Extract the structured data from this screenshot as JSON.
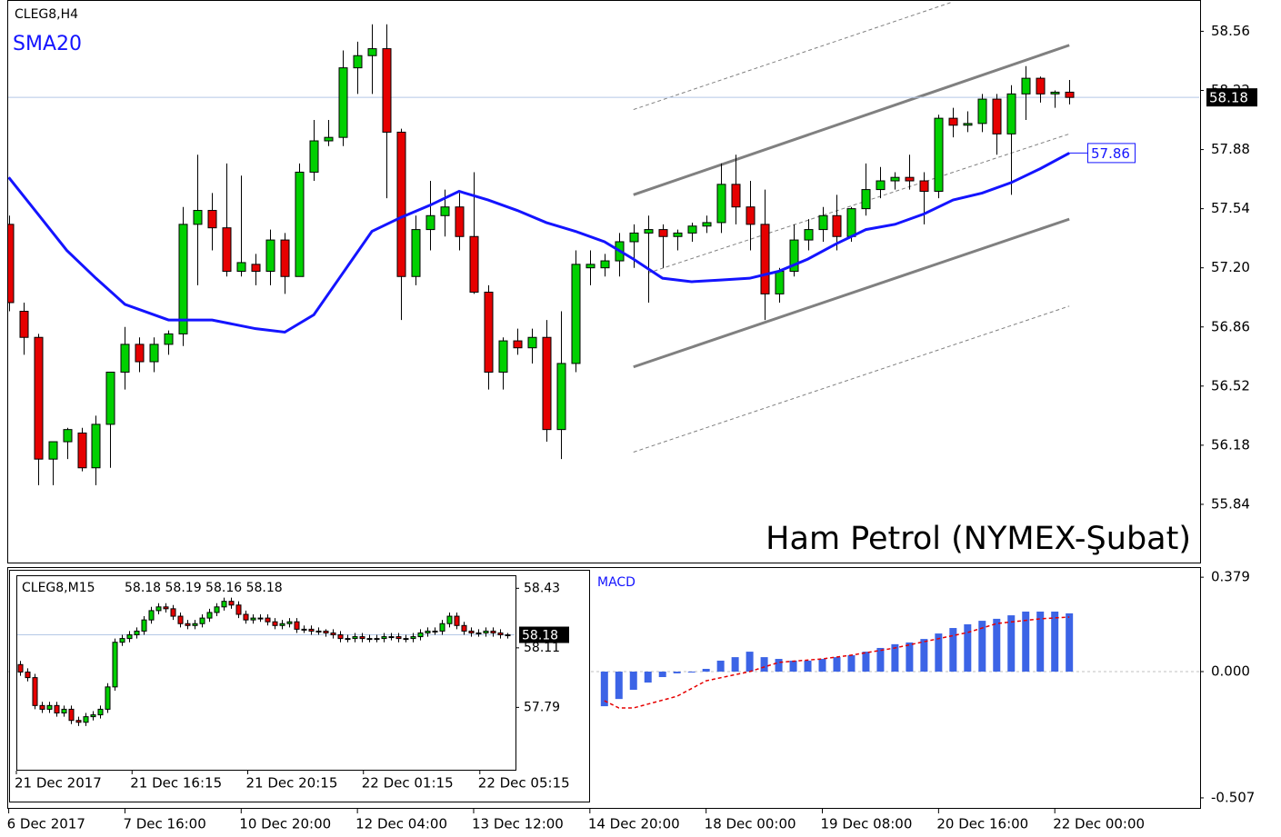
{
  "chart_data": [
    {
      "type": "candlestick",
      "title": "CLEG8,H4",
      "watermark": "Ham Petrol (NYMEX-Şubat)",
      "up_color": "#00d000",
      "down_color": "#e60000",
      "xlim": [
        -0.1,
        82
      ],
      "ylim": [
        55.5,
        58.74
      ],
      "yticks": [
        58.56,
        58.22,
        57.88,
        57.54,
        {
          "value": 57.2,
          "label": "57.20"
        },
        56.86,
        56.52,
        56.18,
        55.84
      ],
      "current_price": 58.18,
      "candles": [
        [
          57.45,
          57.5,
          56.95,
          57.0
        ],
        [
          56.95,
          57.0,
          56.7,
          56.8
        ],
        [
          56.8,
          56.82,
          55.95,
          56.1
        ],
        [
          56.1,
          56.2,
          55.95,
          56.2
        ],
        [
          56.2,
          56.28,
          56.1,
          56.27
        ],
        [
          56.25,
          56.28,
          56.03,
          56.05
        ],
        [
          56.05,
          56.35,
          55.95,
          56.3
        ],
        [
          56.3,
          56.6,
          56.05,
          56.6
        ],
        [
          56.6,
          56.86,
          56.5,
          56.76
        ],
        [
          56.76,
          56.8,
          56.6,
          56.66
        ],
        [
          56.66,
          56.8,
          56.6,
          56.76
        ],
        [
          56.76,
          56.84,
          56.7,
          56.82
        ],
        [
          56.82,
          57.55,
          56.75,
          57.45
        ],
        [
          57.45,
          57.85,
          57.1,
          57.53
        ],
        [
          57.53,
          57.63,
          57.3,
          57.43
        ],
        [
          57.43,
          57.8,
          57.15,
          57.18
        ],
        [
          57.18,
          57.73,
          57.15,
          57.23
        ],
        [
          57.22,
          57.28,
          57.1,
          57.18
        ],
        [
          57.18,
          57.42,
          57.1,
          57.36
        ],
        [
          57.36,
          57.4,
          57.05,
          57.15
        ],
        [
          57.15,
          57.8,
          57.15,
          57.75
        ],
        [
          57.75,
          58.05,
          57.7,
          57.93
        ],
        [
          57.93,
          58.05,
          57.9,
          57.95
        ],
        [
          57.95,
          58.45,
          57.9,
          58.35
        ],
        [
          58.35,
          58.5,
          58.2,
          58.42
        ],
        [
          58.42,
          58.6,
          58.2,
          58.46
        ],
        [
          58.46,
          58.6,
          57.6,
          57.98
        ],
        [
          57.98,
          58.0,
          56.9,
          57.15
        ],
        [
          57.15,
          57.5,
          57.1,
          57.42
        ],
        [
          57.42,
          57.7,
          57.3,
          57.5
        ],
        [
          57.5,
          57.65,
          57.38,
          57.55
        ],
        [
          57.55,
          57.63,
          57.3,
          57.38
        ],
        [
          57.38,
          57.75,
          57.05,
          57.06
        ],
        [
          57.06,
          57.1,
          56.5,
          56.6
        ],
        [
          56.6,
          56.8,
          56.5,
          56.78
        ],
        [
          56.78,
          56.85,
          56.7,
          56.74
        ],
        [
          56.74,
          56.85,
          56.65,
          56.8
        ],
        [
          56.8,
          56.9,
          56.2,
          56.27
        ],
        [
          56.27,
          56.95,
          56.1,
          56.65
        ],
        [
          56.65,
          57.3,
          56.6,
          57.22
        ],
        [
          57.2,
          57.3,
          57.1,
          57.22
        ],
        [
          57.2,
          57.28,
          57.15,
          57.24
        ],
        [
          57.24,
          57.4,
          57.15,
          57.35
        ],
        [
          57.35,
          57.45,
          57.2,
          57.4
        ],
        [
          57.4,
          57.5,
          57.0,
          57.42
        ],
        [
          57.42,
          57.45,
          57.2,
          57.38
        ],
        [
          57.38,
          57.42,
          57.3,
          57.4
        ],
        [
          57.4,
          57.46,
          57.35,
          57.44
        ],
        [
          57.44,
          57.5,
          57.4,
          57.46
        ],
        [
          57.46,
          57.8,
          57.4,
          57.68
        ],
        [
          57.68,
          57.85,
          57.45,
          57.55
        ],
        [
          57.55,
          57.7,
          57.3,
          57.45
        ],
        [
          57.45,
          57.65,
          56.9,
          57.05
        ],
        [
          57.05,
          57.2,
          57.0,
          57.18
        ],
        [
          57.18,
          57.45,
          57.15,
          57.36
        ],
        [
          57.36,
          57.48,
          57.3,
          57.42
        ],
        [
          57.42,
          57.55,
          57.35,
          57.5
        ],
        [
          57.5,
          57.62,
          57.3,
          57.38
        ],
        [
          57.38,
          57.55,
          57.35,
          57.54
        ],
        [
          57.54,
          57.8,
          57.5,
          57.65
        ],
        [
          57.65,
          57.78,
          57.6,
          57.7
        ],
        [
          57.7,
          57.75,
          57.65,
          57.72
        ],
        [
          57.72,
          57.85,
          57.65,
          57.7
        ],
        [
          57.7,
          57.75,
          57.45,
          57.64
        ],
        [
          57.64,
          58.08,
          57.6,
          58.06
        ],
        [
          58.06,
          58.12,
          57.95,
          58.02
        ],
        [
          58.02,
          58.1,
          57.98,
          58.03
        ],
        [
          58.03,
          58.2,
          57.98,
          58.17
        ],
        [
          58.17,
          58.2,
          57.85,
          57.97
        ],
        [
          57.97,
          58.25,
          57.62,
          58.2
        ],
        [
          58.2,
          58.36,
          58.05,
          58.29
        ],
        [
          58.29,
          58.3,
          58.15,
          58.2
        ],
        [
          58.2,
          58.22,
          58.12,
          58.21
        ],
        [
          58.21,
          58.28,
          58.14,
          58.18
        ]
      ],
      "sma": {
        "name": "SMA20",
        "color": "#1414ff",
        "x": [
          0,
          2,
          4,
          6,
          8,
          11,
          14,
          17,
          19,
          21,
          23,
          25,
          27,
          29,
          31,
          33,
          35,
          37,
          39,
          41,
          43,
          45,
          47,
          49,
          51,
          53,
          55,
          57,
          59,
          61,
          63,
          65,
          67,
          69,
          71,
          73
        ],
        "values": [
          57.72,
          57.51,
          57.3,
          57.14,
          56.99,
          56.9,
          56.9,
          56.85,
          56.83,
          56.93,
          57.17,
          57.41,
          57.49,
          57.56,
          57.64,
          57.59,
          57.53,
          57.46,
          57.41,
          57.35,
          57.25,
          57.14,
          57.12,
          57.13,
          57.14,
          57.18,
          57.25,
          57.34,
          57.42,
          57.45,
          57.51,
          57.59,
          57.63,
          57.69,
          57.77,
          57.86
        ]
      },
      "lines": [
        {
          "style": "solid",
          "x": [
            43,
            73
          ],
          "values": [
            57.62,
            58.48
          ]
        },
        {
          "style": "solid",
          "x": [
            43,
            73
          ],
          "values": [
            56.63,
            57.48
          ]
        },
        {
          "style": "dashed",
          "x": [
            43,
            65
          ],
          "values": [
            58.11,
            58.73
          ]
        },
        {
          "style": "dashed",
          "x": [
            44,
            73
          ],
          "values": [
            57.17,
            57.97
          ]
        },
        {
          "style": "dashed",
          "x": [
            43,
            73
          ],
          "values": [
            56.14,
            56.98
          ]
        }
      ],
      "x_labels": [
        {
          "index": 0,
          "label": "6 Dec 2017"
        },
        {
          "index": 8,
          "label": "7 Dec 16:00"
        },
        {
          "index": 16,
          "label": "10 Dec 20:00"
        },
        {
          "index": 24,
          "label": "12 Dec 04:00"
        },
        {
          "index": 32,
          "label": "13 Dec 12:00"
        },
        {
          "index": 40,
          "label": "14 Dec 20:00"
        },
        {
          "index": 48,
          "label": "18 Dec 00:00"
        },
        {
          "index": 56,
          "label": "19 Dec 08:00"
        },
        {
          "index": 64,
          "label": "20 Dec 16:00"
        },
        {
          "index": 72,
          "label": "22 Dec 00:00"
        }
      ]
    },
    {
      "type": "bar",
      "title": "MACD",
      "color": "#3c64e6",
      "ylim": [
        -0.551,
        0.416
      ],
      "yticks": [
        0.379,
        {
          "value": 0,
          "label": "0.000"
        },
        -0.507
      ],
      "x": [
        41,
        42,
        43,
        44,
        45,
        46,
        47,
        48,
        49,
        50,
        51,
        52,
        53,
        54,
        55,
        56,
        57,
        58,
        59,
        60,
        61,
        62,
        63,
        64,
        65,
        66,
        67,
        68,
        69,
        70,
        71,
        72,
        73
      ],
      "values": [
        -0.139,
        -0.11,
        -0.073,
        -0.044,
        -0.022,
        -0.007,
        0.0,
        0.011,
        0.044,
        0.058,
        0.08,
        0.058,
        0.051,
        0.044,
        0.044,
        0.051,
        0.058,
        0.066,
        0.08,
        0.095,
        0.11,
        0.117,
        0.131,
        0.153,
        0.175,
        0.19,
        0.204,
        0.212,
        0.226,
        0.241,
        0.241,
        0.241,
        0.234
      ],
      "signal": {
        "color": "#e60000",
        "x": [
          41,
          42,
          43,
          46,
          48,
          51,
          53,
          56,
          58,
          61,
          63,
          66,
          68,
          71,
          73
        ],
        "values": [
          -0.117,
          -0.146,
          -0.146,
          -0.099,
          -0.037,
          0.0,
          0.037,
          0.051,
          0.066,
          0.095,
          0.12,
          0.157,
          0.193,
          0.212,
          0.219
        ]
      }
    },
    {
      "type": "candlestick",
      "title": "CLEG8,M15",
      "quote": "58.18 58.19 58.16 58.18",
      "up_color": "#00d000",
      "down_color": "#e60000",
      "xlim": [
        -0.5,
        68.1
      ],
      "ylim": [
        57.45,
        58.5
      ],
      "yticks": [
        58.43,
        58.11,
        57.79
      ],
      "current_price": 58.18,
      "candles": [
        [
          58.02,
          58.04,
          57.96,
          57.98
        ],
        [
          57.98,
          58.0,
          57.93,
          57.95
        ],
        [
          57.95,
          57.97,
          57.78,
          57.8
        ],
        [
          57.8,
          57.82,
          57.76,
          57.78
        ],
        [
          57.78,
          57.82,
          57.76,
          57.8
        ],
        [
          57.8,
          57.82,
          57.74,
          57.76
        ],
        [
          57.76,
          57.8,
          57.74,
          57.78
        ],
        [
          57.78,
          57.8,
          57.7,
          57.72
        ],
        [
          57.72,
          57.74,
          57.69,
          57.71
        ],
        [
          57.71,
          57.76,
          57.69,
          57.74
        ],
        [
          57.74,
          57.77,
          57.72,
          57.75
        ],
        [
          57.75,
          57.8,
          57.73,
          57.78
        ],
        [
          57.78,
          57.92,
          57.76,
          57.9
        ],
        [
          57.9,
          58.16,
          57.88,
          58.14
        ],
        [
          58.14,
          58.18,
          58.12,
          58.16
        ],
        [
          58.16,
          58.2,
          58.14,
          58.18
        ],
        [
          58.18,
          58.22,
          58.16,
          58.2
        ],
        [
          58.2,
          58.28,
          58.18,
          58.26
        ],
        [
          58.26,
          58.33,
          58.24,
          58.31
        ],
        [
          58.31,
          58.35,
          58.29,
          58.33
        ],
        [
          58.33,
          58.35,
          58.3,
          58.32
        ],
        [
          58.32,
          58.34,
          58.26,
          58.28
        ],
        [
          58.28,
          58.3,
          58.22,
          58.24
        ],
        [
          58.24,
          58.26,
          58.21,
          58.23
        ],
        [
          58.23,
          58.26,
          58.21,
          58.24
        ],
        [
          58.24,
          58.29,
          58.22,
          58.27
        ],
        [
          58.27,
          58.32,
          58.25,
          58.3
        ],
        [
          58.3,
          58.35,
          58.28,
          58.33
        ],
        [
          58.33,
          58.38,
          58.31,
          58.36
        ],
        [
          58.36,
          58.38,
          58.32,
          58.34
        ],
        [
          58.34,
          58.36,
          58.27,
          58.29
        ],
        [
          58.29,
          58.31,
          58.24,
          58.26
        ],
        [
          58.26,
          58.29,
          58.24,
          58.27
        ],
        [
          58.27,
          58.29,
          58.25,
          58.27
        ],
        [
          58.27,
          58.29,
          58.23,
          58.25
        ],
        [
          58.25,
          58.27,
          58.21,
          58.23
        ],
        [
          58.23,
          58.26,
          58.21,
          58.24
        ],
        [
          58.24,
          58.27,
          58.22,
          58.25
        ],
        [
          58.25,
          58.27,
          58.19,
          58.21
        ],
        [
          58.21,
          58.23,
          58.19,
          58.21
        ],
        [
          58.21,
          58.23,
          58.18,
          58.2
        ],
        [
          58.2,
          58.22,
          58.18,
          58.2
        ],
        [
          58.2,
          58.21,
          58.17,
          58.19
        ],
        [
          58.19,
          58.21,
          58.16,
          58.18
        ],
        [
          58.18,
          58.2,
          58.14,
          58.16
        ],
        [
          58.16,
          58.18,
          58.14,
          58.16
        ],
        [
          58.16,
          58.19,
          58.14,
          58.17
        ],
        [
          58.17,
          58.19,
          58.14,
          58.16
        ],
        [
          58.16,
          58.18,
          58.14,
          58.16
        ],
        [
          58.16,
          58.18,
          58.14,
          58.16
        ],
        [
          58.16,
          58.19,
          58.14,
          58.17
        ],
        [
          58.17,
          58.19,
          58.15,
          58.17
        ],
        [
          58.17,
          58.19,
          58.14,
          58.16
        ],
        [
          58.16,
          58.18,
          58.14,
          58.16
        ],
        [
          58.16,
          58.19,
          58.14,
          58.17
        ],
        [
          58.17,
          58.21,
          58.15,
          58.19
        ],
        [
          58.19,
          58.22,
          58.17,
          58.2
        ],
        [
          58.2,
          58.22,
          58.18,
          58.2
        ],
        [
          58.2,
          58.26,
          58.18,
          58.24
        ],
        [
          58.24,
          58.3,
          58.22,
          58.28
        ],
        [
          58.28,
          58.3,
          58.21,
          58.23
        ],
        [
          58.23,
          58.25,
          58.18,
          58.2
        ],
        [
          58.2,
          58.22,
          58.17,
          58.19
        ],
        [
          58.19,
          58.21,
          58.17,
          58.19
        ],
        [
          58.19,
          58.22,
          58.17,
          58.2
        ],
        [
          58.2,
          58.22,
          58.17,
          58.19
        ],
        [
          58.19,
          58.21,
          58.16,
          58.18
        ],
        [
          58.18,
          58.19,
          58.16,
          58.18
        ]
      ],
      "x_labels": [
        {
          "index": -0.5,
          "label": "21 Dec 2017"
        },
        {
          "index": 15.4,
          "label": "21 Dec 16:15"
        },
        {
          "index": 31.3,
          "label": "21 Dec 20:15"
        },
        {
          "index": 47.2,
          "label": "22 Dec 01:15"
        },
        {
          "index": 63.2,
          "label": "22 Dec 05:15"
        }
      ]
    }
  ]
}
